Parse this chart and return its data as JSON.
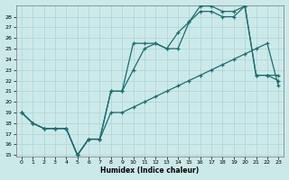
{
  "xlabel": "Humidex (Indice chaleur)",
  "background_color": "#cce9e9",
  "grid_color": "#aad4d4",
  "line_color": "#1a6e6e",
  "xlim": [
    -0.5,
    23.5
  ],
  "ylim": [
    15,
    29
  ],
  "yticks": [
    15,
    16,
    17,
    18,
    19,
    20,
    21,
    22,
    23,
    24,
    25,
    26,
    27,
    28
  ],
  "xticks": [
    0,
    1,
    2,
    3,
    4,
    5,
    6,
    7,
    8,
    9,
    10,
    11,
    12,
    13,
    14,
    15,
    16,
    17,
    18,
    19,
    20,
    21,
    22,
    23
  ],
  "line1_x": [
    0,
    1,
    2,
    3,
    4,
    5,
    6,
    7,
    8,
    9,
    10,
    11,
    12,
    13,
    14,
    15,
    16,
    17,
    18,
    19,
    20,
    21,
    22,
    23
  ],
  "line1_y": [
    19,
    18,
    17.5,
    17.5,
    17.5,
    15,
    16.5,
    16.5,
    21,
    21,
    25.5,
    25.5,
    25.5,
    25,
    26.5,
    27.5,
    29,
    29,
    28.5,
    28.5,
    29,
    22.5,
    22.5,
    22.5
  ],
  "line2_x": [
    0,
    1,
    2,
    3,
    4,
    5,
    6,
    7,
    8,
    9,
    10,
    11,
    12,
    13,
    14,
    15,
    16,
    17,
    18,
    19,
    20,
    21,
    22,
    23
  ],
  "line2_y": [
    19,
    18,
    17.5,
    17.5,
    17.5,
    15,
    16.5,
    16.5,
    21,
    21,
    23,
    25,
    25.5,
    25,
    25,
    27.5,
    28.5,
    28.5,
    28,
    28,
    29,
    22.5,
    22.5,
    22
  ],
  "line3_x": [
    0,
    1,
    2,
    3,
    4,
    5,
    6,
    7,
    8,
    9,
    10,
    11,
    12,
    13,
    14,
    15,
    16,
    17,
    18,
    19,
    20,
    21,
    22,
    23
  ],
  "line3_y": [
    19,
    18,
    17.5,
    17.5,
    17.5,
    15,
    16.5,
    16.5,
    19,
    19,
    19.5,
    20,
    20.5,
    21,
    21.5,
    22,
    22.5,
    23,
    23.5,
    24,
    24.5,
    25,
    25.5,
    21.5
  ]
}
